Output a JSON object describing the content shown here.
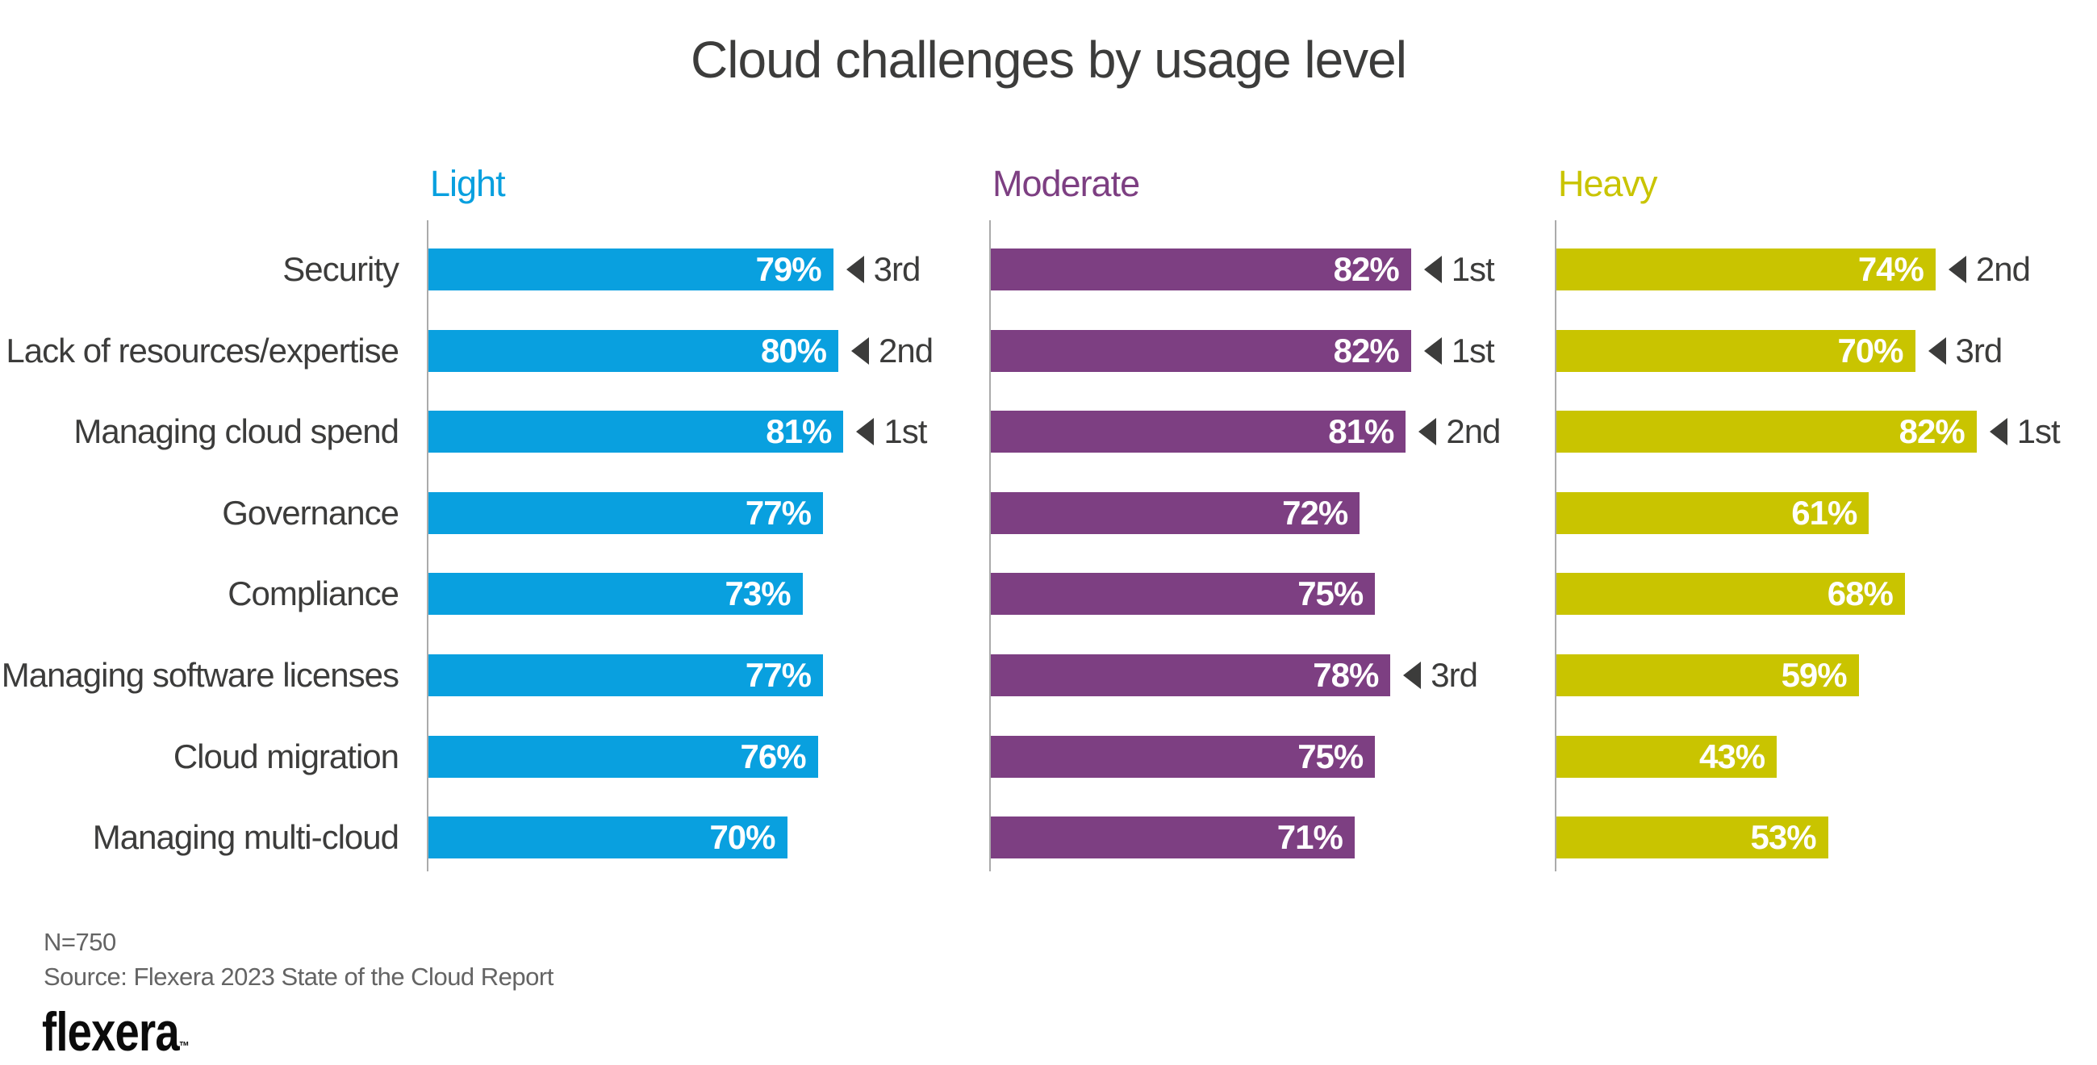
{
  "title": "Cloud challenges by usage level",
  "chart_data": {
    "type": "bar",
    "orientation": "horizontal",
    "value_suffix": "%",
    "xlim": [
      0,
      100
    ],
    "grid": false,
    "legend_position": "column-headers-top",
    "annotation_marker": "◀",
    "categories": [
      "Security",
      "Lack of resources/expertise",
      "Managing cloud spend",
      "Governance",
      "Compliance",
      "Managing software licenses",
      "Cloud migration",
      "Managing multi-cloud"
    ],
    "series": [
      {
        "name": "Light",
        "color": "#09A0DF",
        "values": [
          79,
          80,
          81,
          77,
          73,
          77,
          76,
          70
        ],
        "ranks": [
          "3rd",
          "2nd",
          "1st",
          "",
          "",
          "",
          "",
          ""
        ]
      },
      {
        "name": "Moderate",
        "color": "#7D3F82",
        "values": [
          82,
          82,
          81,
          72,
          75,
          78,
          75,
          71
        ],
        "ranks": [
          "1st",
          "1st",
          "2nd",
          "",
          "",
          "3rd",
          "",
          ""
        ]
      },
      {
        "name": "Heavy",
        "color": "#C9C400",
        "values": [
          74,
          70,
          82,
          61,
          68,
          59,
          43,
          53
        ],
        "ranks": [
          "2nd",
          "3rd",
          "1st",
          "",
          "",
          "",
          "",
          ""
        ]
      }
    ]
  },
  "footer": {
    "sample": "N=750",
    "source": "Source: Flexera 2023 State of the Cloud Report",
    "logo_text": "flexera",
    "logo_tm": "™"
  },
  "style_colors": {
    "title_text": "#3C3C3B",
    "category_text": "#3C3C3B",
    "rank_text": "#3C3C3B",
    "axis_line": "#ABABAB",
    "footer_text": "#646464",
    "bar_value_text": "#FFFFFF"
  }
}
